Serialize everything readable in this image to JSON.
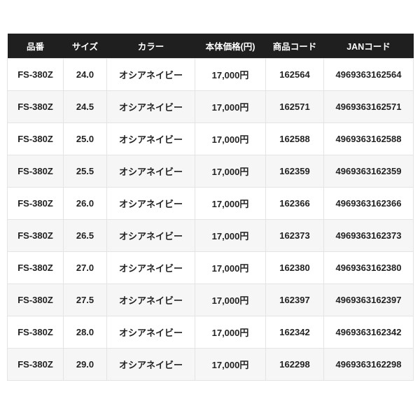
{
  "colors": {
    "header_bg": "#1f1f1f",
    "header_text": "#ffffff",
    "row_bg": "#ffffff",
    "row_alt_bg": "#f6f6f6",
    "border": "#e4e4e4",
    "body_text": "#222222"
  },
  "table": {
    "columns": [
      "品番",
      "サイズ",
      "カラー",
      "本体価格(円)",
      "商品コード",
      "JANコード"
    ],
    "rows": [
      [
        "FS-380Z",
        "24.0",
        "オシアネイビー",
        "17,000円",
        "162564",
        "4969363162564"
      ],
      [
        "FS-380Z",
        "24.5",
        "オシアネイビー",
        "17,000円",
        "162571",
        "4969363162571"
      ],
      [
        "FS-380Z",
        "25.0",
        "オシアネイビー",
        "17,000円",
        "162588",
        "4969363162588"
      ],
      [
        "FS-380Z",
        "25.5",
        "オシアネイビー",
        "17,000円",
        "162359",
        "4969363162359"
      ],
      [
        "FS-380Z",
        "26.0",
        "オシアネイビー",
        "17,000円",
        "162366",
        "4969363162366"
      ],
      [
        "FS-380Z",
        "26.5",
        "オシアネイビー",
        "17,000円",
        "162373",
        "4969363162373"
      ],
      [
        "FS-380Z",
        "27.0",
        "オシアネイビー",
        "17,000円",
        "162380",
        "4969363162380"
      ],
      [
        "FS-380Z",
        "27.5",
        "オシアネイビー",
        "17,000円",
        "162397",
        "4969363162397"
      ],
      [
        "FS-380Z",
        "28.0",
        "オシアネイビー",
        "17,000円",
        "162342",
        "4969363162342"
      ],
      [
        "FS-380Z",
        "29.0",
        "オシアネイビー",
        "17,000円",
        "162298",
        "4969363162298"
      ]
    ]
  }
}
